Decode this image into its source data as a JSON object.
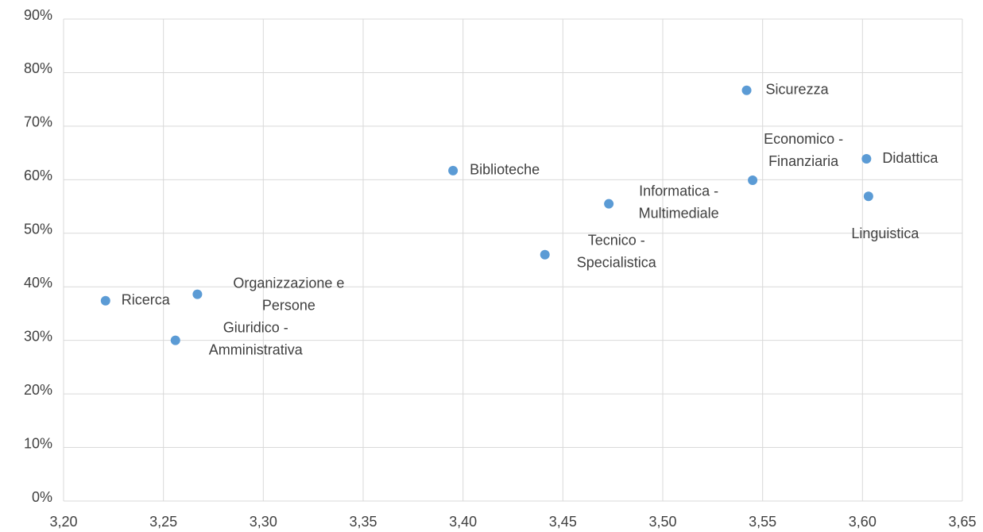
{
  "chart_data": {
    "type": "scatter",
    "x": [
      3.221,
      3.267,
      3.256,
      3.395,
      3.441,
      3.473,
      3.542,
      3.545,
      3.602,
      3.603
    ],
    "values": [
      37.4,
      38.6,
      30.0,
      61.7,
      46.0,
      55.5,
      76.7,
      59.9,
      63.9,
      56.9
    ],
    "point_labels": [
      [
        "Ricerca"
      ],
      [
        "Organizzazione e",
        "Persone"
      ],
      [
        "Giuridico -",
        "Amministrativa"
      ],
      [
        "Biblioteche"
      ],
      [
        "Tecnico -",
        "Specialistica"
      ],
      [
        "Informatica -",
        "Multimediale"
      ],
      [
        "Sicurezza"
      ],
      [
        "Economico -",
        "Finanziaria"
      ],
      [
        "Didattica"
      ],
      [
        "Linguistica"
      ]
    ],
    "color": "#5b9bd5",
    "xlim": [
      3.2,
      3.65
    ],
    "xticks": [
      {
        "value": 3.2,
        "label": "3,20"
      },
      {
        "value": 3.25,
        "label": "3,25"
      },
      {
        "value": 3.3,
        "label": "3,30"
      },
      {
        "value": 3.35,
        "label": "3,35"
      },
      {
        "value": 3.4,
        "label": "3,40"
      },
      {
        "value": 3.45,
        "label": "3,45"
      },
      {
        "value": 3.5,
        "label": "3,50"
      },
      {
        "value": 3.55,
        "label": "3,55"
      },
      {
        "value": 3.6,
        "label": "3,60"
      },
      {
        "value": 3.65,
        "label": "3,65"
      }
    ],
    "ylim": [
      0,
      90
    ],
    "yticks": [
      {
        "value": 0,
        "label": "0%"
      },
      {
        "value": 10,
        "label": "10%"
      },
      {
        "value": 20,
        "label": "20%"
      },
      {
        "value": 30,
        "label": "30%"
      },
      {
        "value": 40,
        "label": "40%"
      },
      {
        "value": 50,
        "label": "50%"
      },
      {
        "value": 60,
        "label": "60%"
      },
      {
        "value": 70,
        "label": "70%"
      },
      {
        "value": 80,
        "label": "80%"
      },
      {
        "value": 90,
        "label": "90%"
      }
    ],
    "grid": true
  }
}
